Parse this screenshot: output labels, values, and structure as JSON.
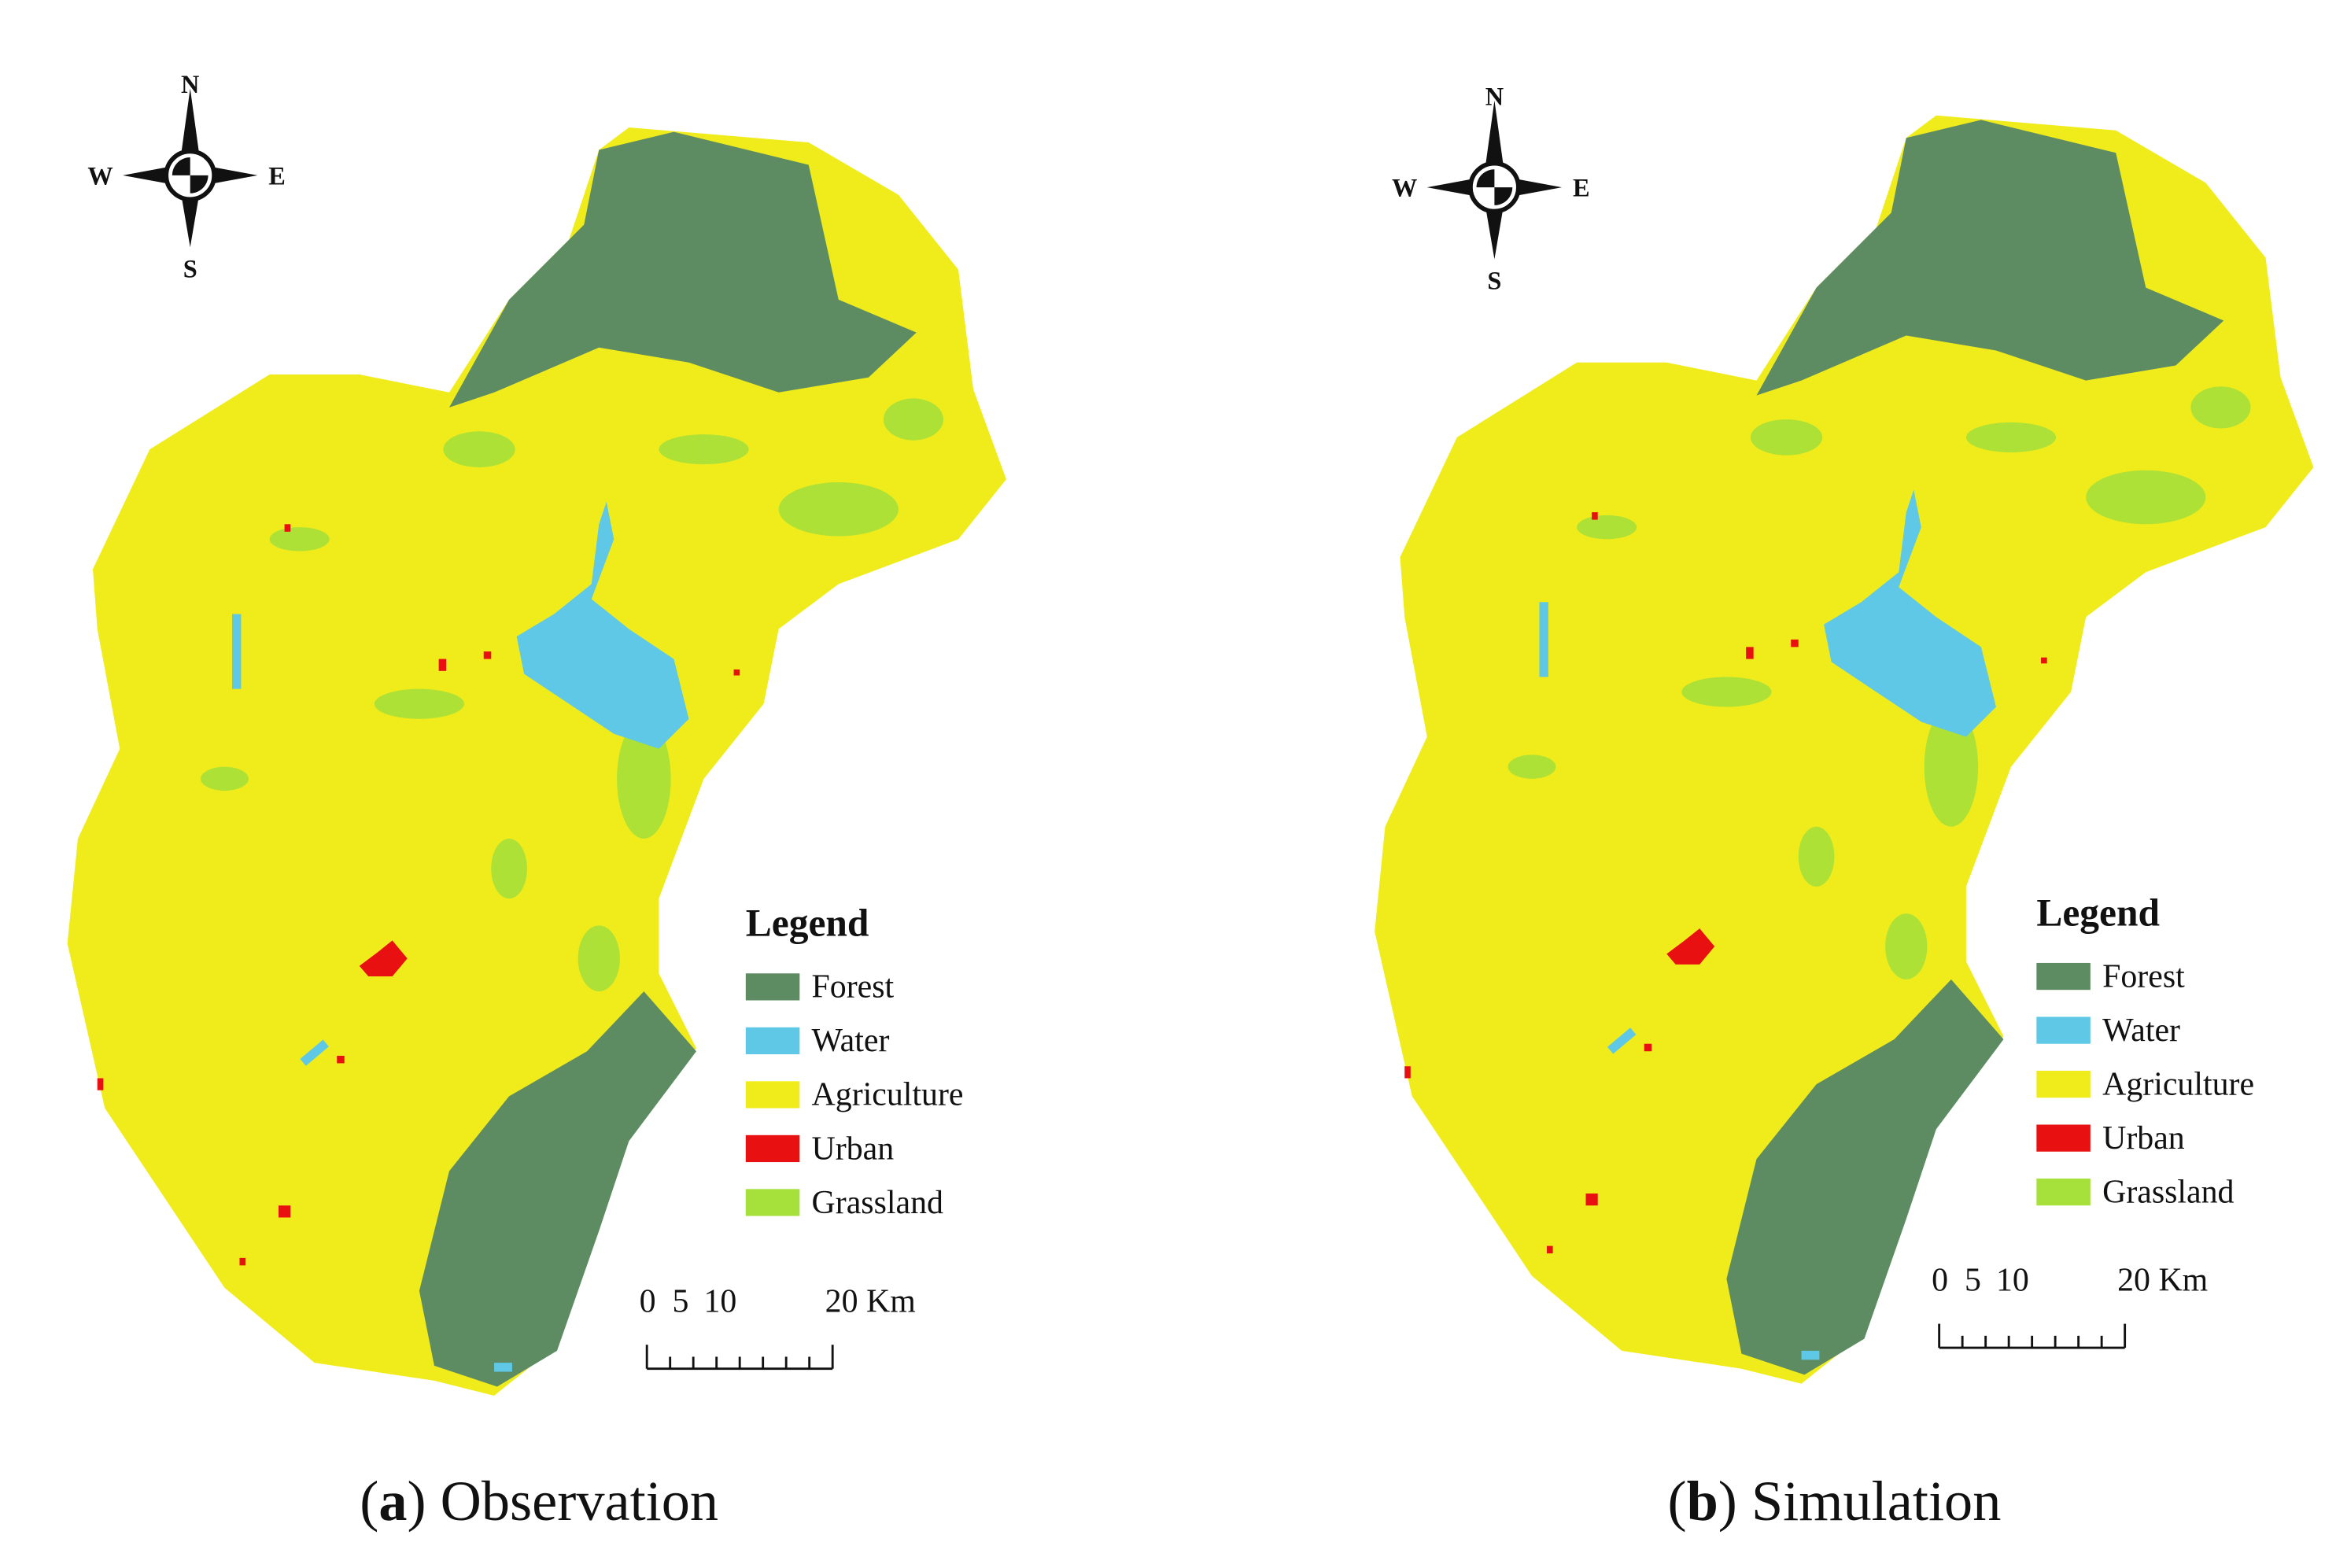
{
  "panels": [
    {
      "compass": {
        "n": "N",
        "s": "S",
        "w": "W",
        "e": "E"
      },
      "legend": {
        "title": "Legend",
        "items": [
          {
            "label": "Forest",
            "color": "#5e8c62"
          },
          {
            "label": "Water",
            "color": "#5ec8e6"
          },
          {
            "label": "Agriculture",
            "color": "#f0ec1c"
          },
          {
            "label": "Urban",
            "color": "#e81010"
          },
          {
            "label": "Grassland",
            "color": "#a6e03a"
          }
        ]
      },
      "scale": [
        "0",
        "5",
        "10",
        "20 Km"
      ],
      "caption": {
        "open": "(",
        "letter": "a",
        "rest": ") Observation"
      }
    },
    {
      "compass": {
        "n": "N",
        "s": "S",
        "w": "W",
        "e": "E"
      },
      "legend": {
        "title": "Legend",
        "items": [
          {
            "label": "Forest",
            "color": "#5e8c62"
          },
          {
            "label": "Water",
            "color": "#5ec8e6"
          },
          {
            "label": "Agriculture",
            "color": "#f0ec1c"
          },
          {
            "label": "Urban",
            "color": "#e81010"
          },
          {
            "label": "Grassland",
            "color": "#a6e03a"
          }
        ]
      },
      "scale": [
        "0",
        "5",
        "10",
        "20 Km"
      ],
      "caption": {
        "open": "(",
        "letter": "b",
        "rest": ") Simulation"
      }
    }
  ]
}
